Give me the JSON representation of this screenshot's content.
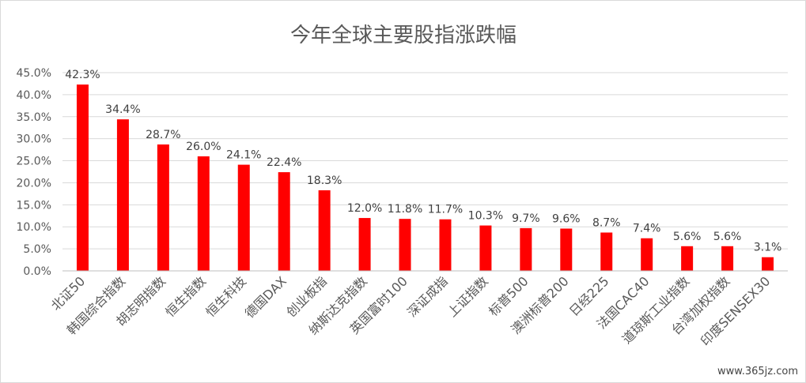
{
  "chart_data": {
    "type": "bar",
    "title": "今年全球主要股指涨跌幅",
    "categories": [
      "北证50",
      "韩国综合指数",
      "胡志明指数",
      "恒生指数",
      "恒生科技",
      "德国DAX",
      "创业板指",
      "纳斯达克指数",
      "英国富时100",
      "深证成指",
      "上证指数",
      "标普500",
      "澳洲标普200",
      "日经225",
      "法国CAC40",
      "道琼斯工业指数",
      "台湾加权指数",
      "印度SENSEX30"
    ],
    "values": [
      42.3,
      34.4,
      28.7,
      26.0,
      24.1,
      22.4,
      18.3,
      12.0,
      11.8,
      11.7,
      10.3,
      9.7,
      9.6,
      8.7,
      7.4,
      5.6,
      5.6,
      3.1
    ],
    "data_labels": [
      "42.3%",
      "34.4%",
      "28.7%",
      "26.0%",
      "24.1%",
      "22.4%",
      "18.3%",
      "12.0%",
      "11.8%",
      "11.7%",
      "10.3%",
      "9.7%",
      "9.6%",
      "8.7%",
      "7.4%",
      "5.6%",
      "5.6%",
      "3.1%"
    ],
    "y_ticks": [
      "0.0%",
      "5.0%",
      "10.0%",
      "15.0%",
      "20.0%",
      "25.0%",
      "30.0%",
      "35.0%",
      "40.0%",
      "45.0%"
    ],
    "ylim": [
      0,
      45
    ],
    "grid": true,
    "bar_color": "#ff0000"
  },
  "watermark": "www.365jz.com"
}
